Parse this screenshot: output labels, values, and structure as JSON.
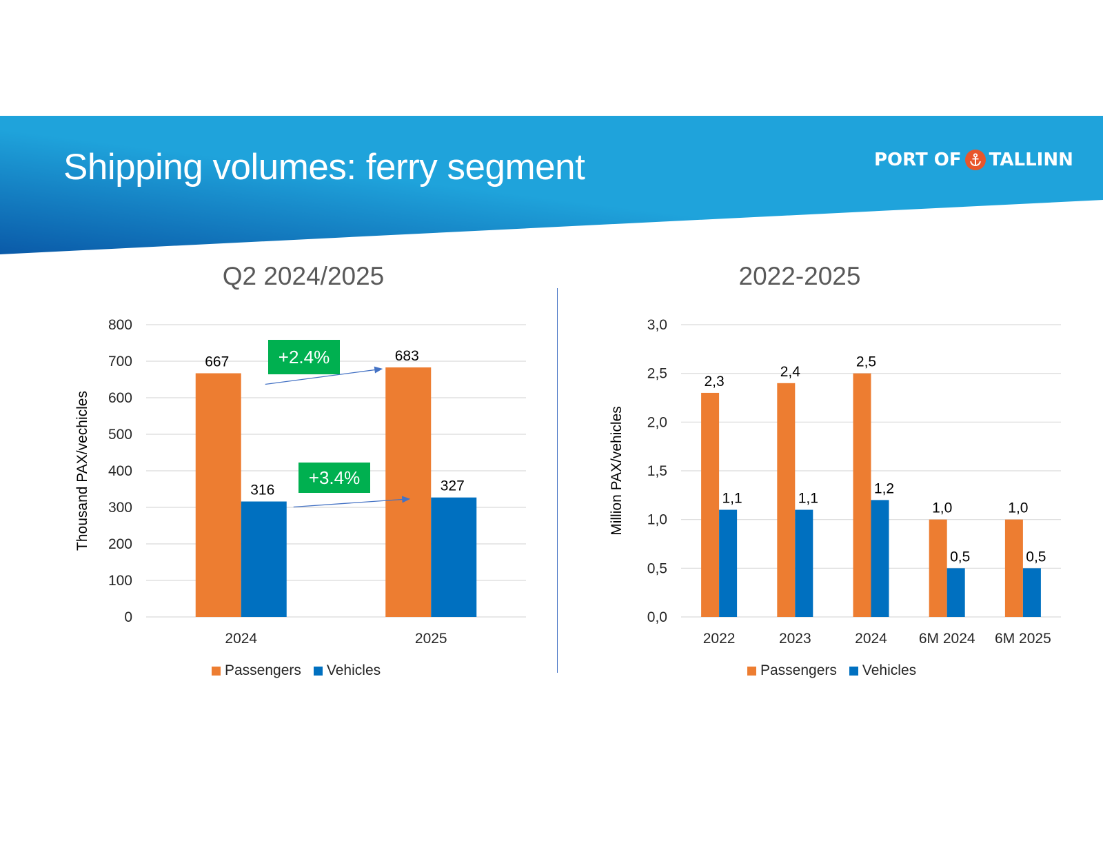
{
  "header": {
    "title": "Shipping volumes: ferry segment",
    "logo_left": "PORT OF",
    "logo_right": "TALLINN",
    "gradient_dark": "#0a5aa8",
    "gradient_light": "#1fa3db",
    "logo_accent": "#e8562b"
  },
  "colors": {
    "passengers": "#ed7d31",
    "vehicles": "#0070c0",
    "growth": "#00b050"
  },
  "growth": {
    "passengers": "+2.4%",
    "vehicles": "+3.4%"
  },
  "chart_data": [
    {
      "type": "bar",
      "title": "Q2 2024/2025",
      "xlabel": "",
      "ylabel": "Thousand PAX/vechicles",
      "categories": [
        "2024",
        "2025"
      ],
      "series": [
        {
          "name": "Passengers",
          "values": [
            667,
            683
          ],
          "labels": [
            "667",
            "683"
          ]
        },
        {
          "name": "Vehicles",
          "values": [
            316,
            327
          ],
          "labels": [
            "316",
            "327"
          ]
        }
      ],
      "ylim": [
        0,
        800
      ],
      "yticks": [
        0,
        100,
        200,
        300,
        400,
        500,
        600,
        700,
        800
      ],
      "ytick_labels": [
        "0",
        "100",
        "200",
        "300",
        "400",
        "500",
        "600",
        "700",
        "800"
      ],
      "grid": true,
      "legend": "bottom"
    },
    {
      "type": "bar",
      "title": "2022-2025",
      "xlabel": "",
      "ylabel": "Million PAX/vehicles",
      "categories": [
        "2022",
        "2023",
        "2024",
        "6M 2024",
        "6M 2025"
      ],
      "series": [
        {
          "name": "Passengers",
          "values": [
            2.3,
            2.4,
            2.5,
            1.0,
            1.0
          ],
          "labels": [
            "2,3",
            "2,4",
            "2,5",
            "1,0",
            "1,0"
          ]
        },
        {
          "name": "Vehicles",
          "values": [
            1.1,
            1.1,
            1.2,
            0.5,
            0.5
          ],
          "labels": [
            "1,1",
            "1,1",
            "1,2",
            "0,5",
            "0,5"
          ]
        }
      ],
      "ylim": [
        0,
        3.0
      ],
      "yticks": [
        0,
        0.5,
        1.0,
        1.5,
        2.0,
        2.5,
        3.0
      ],
      "ytick_labels": [
        "0,0",
        "0,5",
        "1,0",
        "1,5",
        "2,0",
        "2,5",
        "3,0"
      ],
      "grid": true,
      "legend": "bottom"
    }
  ]
}
